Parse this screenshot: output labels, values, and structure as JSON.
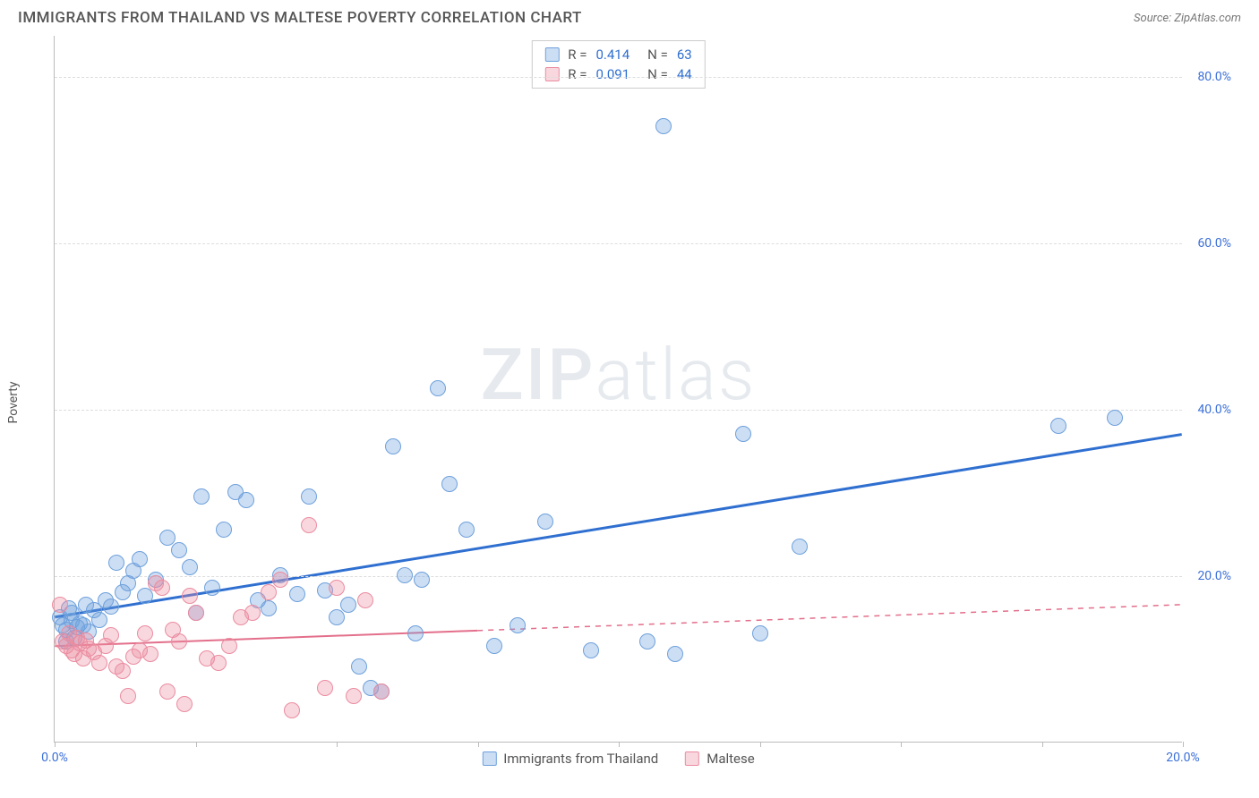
{
  "header": {
    "title": "IMMIGRANTS FROM THAILAND VS MALTESE POVERTY CORRELATION CHART",
    "source_label": "Source: ZipAtlas.com"
  },
  "chart": {
    "type": "scatter",
    "y_axis_label": "Poverty",
    "watermark_zip": "ZIP",
    "watermark_atlas": "atlas",
    "background_color": "#ffffff",
    "grid_color": "#dddddd",
    "axis_color": "#bbbbbb",
    "x_domain": [
      0,
      20
    ],
    "y_domain": [
      0,
      85
    ],
    "x_ticks": [
      {
        "pos": 0,
        "label": "0.0%"
      },
      {
        "pos": 2.5,
        "label": ""
      },
      {
        "pos": 5.0,
        "label": ""
      },
      {
        "pos": 7.5,
        "label": ""
      },
      {
        "pos": 10.0,
        "label": ""
      },
      {
        "pos": 12.5,
        "label": ""
      },
      {
        "pos": 15.0,
        "label": ""
      },
      {
        "pos": 17.5,
        "label": ""
      },
      {
        "pos": 20.0,
        "label": "20.0%"
      }
    ],
    "x_tick_color": "#3a6fd8",
    "y_ticks": [
      {
        "pos": 20,
        "label": "20.0%"
      },
      {
        "pos": 40,
        "label": "40.0%"
      },
      {
        "pos": 60,
        "label": "60.0%"
      },
      {
        "pos": 80,
        "label": "80.0%"
      }
    ],
    "y_tick_color": "#3a6fd8",
    "series": [
      {
        "key": "thailand",
        "name": "Immigrants from Thailand",
        "color_fill": "rgba(110,160,220,0.35)",
        "color_stroke": "#6ea0dc",
        "trend_color": "#2f6fd0",
        "trend_width": 3,
        "trend_dash": "none",
        "trend": {
          "x1": 0,
          "y1": 15,
          "x2": 20,
          "y2": 37
        },
        "marker_radius": 9,
        "R": "0.414",
        "N": "63",
        "stat_color": "#2f6fd0",
        "points": [
          [
            0.1,
            15
          ],
          [
            0.15,
            14
          ],
          [
            0.2,
            13.5
          ],
          [
            0.25,
            16
          ],
          [
            0.3,
            14.5
          ],
          [
            0.3,
            15.5
          ],
          [
            0.35,
            12.5
          ],
          [
            0.4,
            13.8
          ],
          [
            0.45,
            14.2
          ],
          [
            0.5,
            14.0
          ],
          [
            0.55,
            16.5
          ],
          [
            0.6,
            13.2
          ],
          [
            0.7,
            15.8
          ],
          [
            0.8,
            14.6
          ],
          [
            0.9,
            17.0
          ],
          [
            1.0,
            16.2
          ],
          [
            1.1,
            21.5
          ],
          [
            1.2,
            18.0
          ],
          [
            1.3,
            19.0
          ],
          [
            1.4,
            20.5
          ],
          [
            1.5,
            22.0
          ],
          [
            1.6,
            17.5
          ],
          [
            1.8,
            19.5
          ],
          [
            2.0,
            24.5
          ],
          [
            2.2,
            23.0
          ],
          [
            2.4,
            21.0
          ],
          [
            2.5,
            15.5
          ],
          [
            2.6,
            29.5
          ],
          [
            2.8,
            18.5
          ],
          [
            3.0,
            25.5
          ],
          [
            3.2,
            30.0
          ],
          [
            3.4,
            29.0
          ],
          [
            3.6,
            17.0
          ],
          [
            3.8,
            16.0
          ],
          [
            4.0,
            20.0
          ],
          [
            4.3,
            17.8
          ],
          [
            4.5,
            29.5
          ],
          [
            4.8,
            18.2
          ],
          [
            5.0,
            15.0
          ],
          [
            5.2,
            16.5
          ],
          [
            5.4,
            9.0
          ],
          [
            5.6,
            6.5
          ],
          [
            5.8,
            6.0
          ],
          [
            6.0,
            35.5
          ],
          [
            6.2,
            20.0
          ],
          [
            6.4,
            13.0
          ],
          [
            6.5,
            19.5
          ],
          [
            6.8,
            42.5
          ],
          [
            7.0,
            31.0
          ],
          [
            7.3,
            25.5
          ],
          [
            7.8,
            11.5
          ],
          [
            8.2,
            14.0
          ],
          [
            8.7,
            26.5
          ],
          [
            9.5,
            11.0
          ],
          [
            10.5,
            12.0
          ],
          [
            10.8,
            74.0
          ],
          [
            11.0,
            10.5
          ],
          [
            12.2,
            37.0
          ],
          [
            12.5,
            13.0
          ],
          [
            13.2,
            23.5
          ],
          [
            17.8,
            38.0
          ],
          [
            18.8,
            39.0
          ],
          [
            0.2,
            12.0
          ]
        ]
      },
      {
        "key": "maltese",
        "name": "Maltese",
        "color_fill": "rgba(235,140,160,0.35)",
        "color_stroke": "#eb8ca0",
        "trend_color": "#e36f8b",
        "trend_width": 2,
        "trend_dash": "solid_then_dash",
        "trend": {
          "x1": 0,
          "y1": 11.5,
          "x2": 20,
          "y2": 16.5
        },
        "trend_solid_until_x": 7.5,
        "marker_radius": 9,
        "R": "0.091",
        "N": "44",
        "stat_color": "#2f6fd0",
        "points": [
          [
            0.1,
            16.5
          ],
          [
            0.15,
            12.0
          ],
          [
            0.2,
            11.5
          ],
          [
            0.25,
            13.0
          ],
          [
            0.3,
            11.0
          ],
          [
            0.35,
            10.5
          ],
          [
            0.4,
            12.5
          ],
          [
            0.45,
            11.8
          ],
          [
            0.5,
            10.0
          ],
          [
            0.55,
            12.2
          ],
          [
            0.6,
            11.2
          ],
          [
            0.7,
            10.8
          ],
          [
            0.8,
            9.5
          ],
          [
            0.9,
            11.5
          ],
          [
            1.0,
            12.8
          ],
          [
            1.1,
            9.0
          ],
          [
            1.2,
            8.5
          ],
          [
            1.3,
            5.5
          ],
          [
            1.4,
            10.2
          ],
          [
            1.5,
            11.0
          ],
          [
            1.6,
            13.0
          ],
          [
            1.7,
            10.5
          ],
          [
            1.8,
            19.0
          ],
          [
            1.9,
            18.5
          ],
          [
            2.0,
            6.0
          ],
          [
            2.1,
            13.5
          ],
          [
            2.2,
            12.0
          ],
          [
            2.3,
            4.5
          ],
          [
            2.4,
            17.5
          ],
          [
            2.5,
            15.5
          ],
          [
            2.7,
            10.0
          ],
          [
            2.9,
            9.5
          ],
          [
            3.1,
            11.5
          ],
          [
            3.3,
            15.0
          ],
          [
            3.5,
            15.5
          ],
          [
            3.8,
            18.0
          ],
          [
            4.0,
            19.5
          ],
          [
            4.2,
            3.8
          ],
          [
            4.5,
            26.0
          ],
          [
            4.8,
            6.5
          ],
          [
            5.0,
            18.5
          ],
          [
            5.3,
            5.5
          ],
          [
            5.5,
            17.0
          ],
          [
            5.8,
            6.0
          ]
        ]
      }
    ],
    "legend": {
      "item1": "Immigrants from Thailand",
      "item2": "Maltese"
    }
  }
}
